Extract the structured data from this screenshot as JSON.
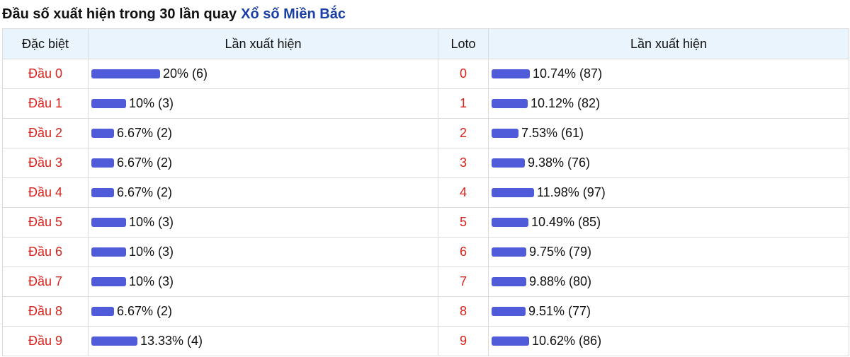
{
  "header": {
    "title": "Đầu số xuất hiện trong 30 lần quay",
    "link": "Xổ số Miền Bắc"
  },
  "table": {
    "col_special": "Đặc biệt",
    "col_count1": "Lần xuất hiện",
    "col_loto": "Loto",
    "col_count2": "Lần xuất hiện"
  },
  "accent_bar_color": "#4f5bd9",
  "label_color": "#d8221b",
  "rows": [
    {
      "special_label": "Đầu 0",
      "special_value": "20% (6)",
      "special_pct": 20,
      "loto_label": "0",
      "loto_value": "10.74% (87)",
      "loto_pct": 10.74
    },
    {
      "special_label": "Đầu 1",
      "special_value": "10% (3)",
      "special_pct": 10,
      "loto_label": "1",
      "loto_value": "10.12% (82)",
      "loto_pct": 10.12
    },
    {
      "special_label": "Đầu 2",
      "special_value": "6.67% (2)",
      "special_pct": 6.67,
      "loto_label": "2",
      "loto_value": "7.53% (61)",
      "loto_pct": 7.53
    },
    {
      "special_label": "Đầu 3",
      "special_value": "6.67% (2)",
      "special_pct": 6.67,
      "loto_label": "3",
      "loto_value": "9.38% (76)",
      "loto_pct": 9.38
    },
    {
      "special_label": "Đầu 4",
      "special_value": "6.67% (2)",
      "special_pct": 6.67,
      "loto_label": "4",
      "loto_value": "11.98% (97)",
      "loto_pct": 11.98
    },
    {
      "special_label": "Đầu 5",
      "special_value": "10% (3)",
      "special_pct": 10,
      "loto_label": "5",
      "loto_value": "10.49% (85)",
      "loto_pct": 10.49
    },
    {
      "special_label": "Đầu 6",
      "special_value": "10% (3)",
      "special_pct": 10,
      "loto_label": "6",
      "loto_value": "9.75% (79)",
      "loto_pct": 9.75
    },
    {
      "special_label": "Đầu 7",
      "special_value": "10% (3)",
      "special_pct": 10,
      "loto_label": "7",
      "loto_value": "9.88% (80)",
      "loto_pct": 9.88
    },
    {
      "special_label": "Đầu 8",
      "special_value": "6.67% (2)",
      "special_pct": 6.67,
      "loto_label": "8",
      "loto_value": "9.51% (77)",
      "loto_pct": 9.51
    },
    {
      "special_label": "Đầu 9",
      "special_value": "13.33% (4)",
      "special_pct": 13.33,
      "loto_label": "9",
      "loto_value": "10.62% (86)",
      "loto_pct": 10.62
    }
  ]
}
